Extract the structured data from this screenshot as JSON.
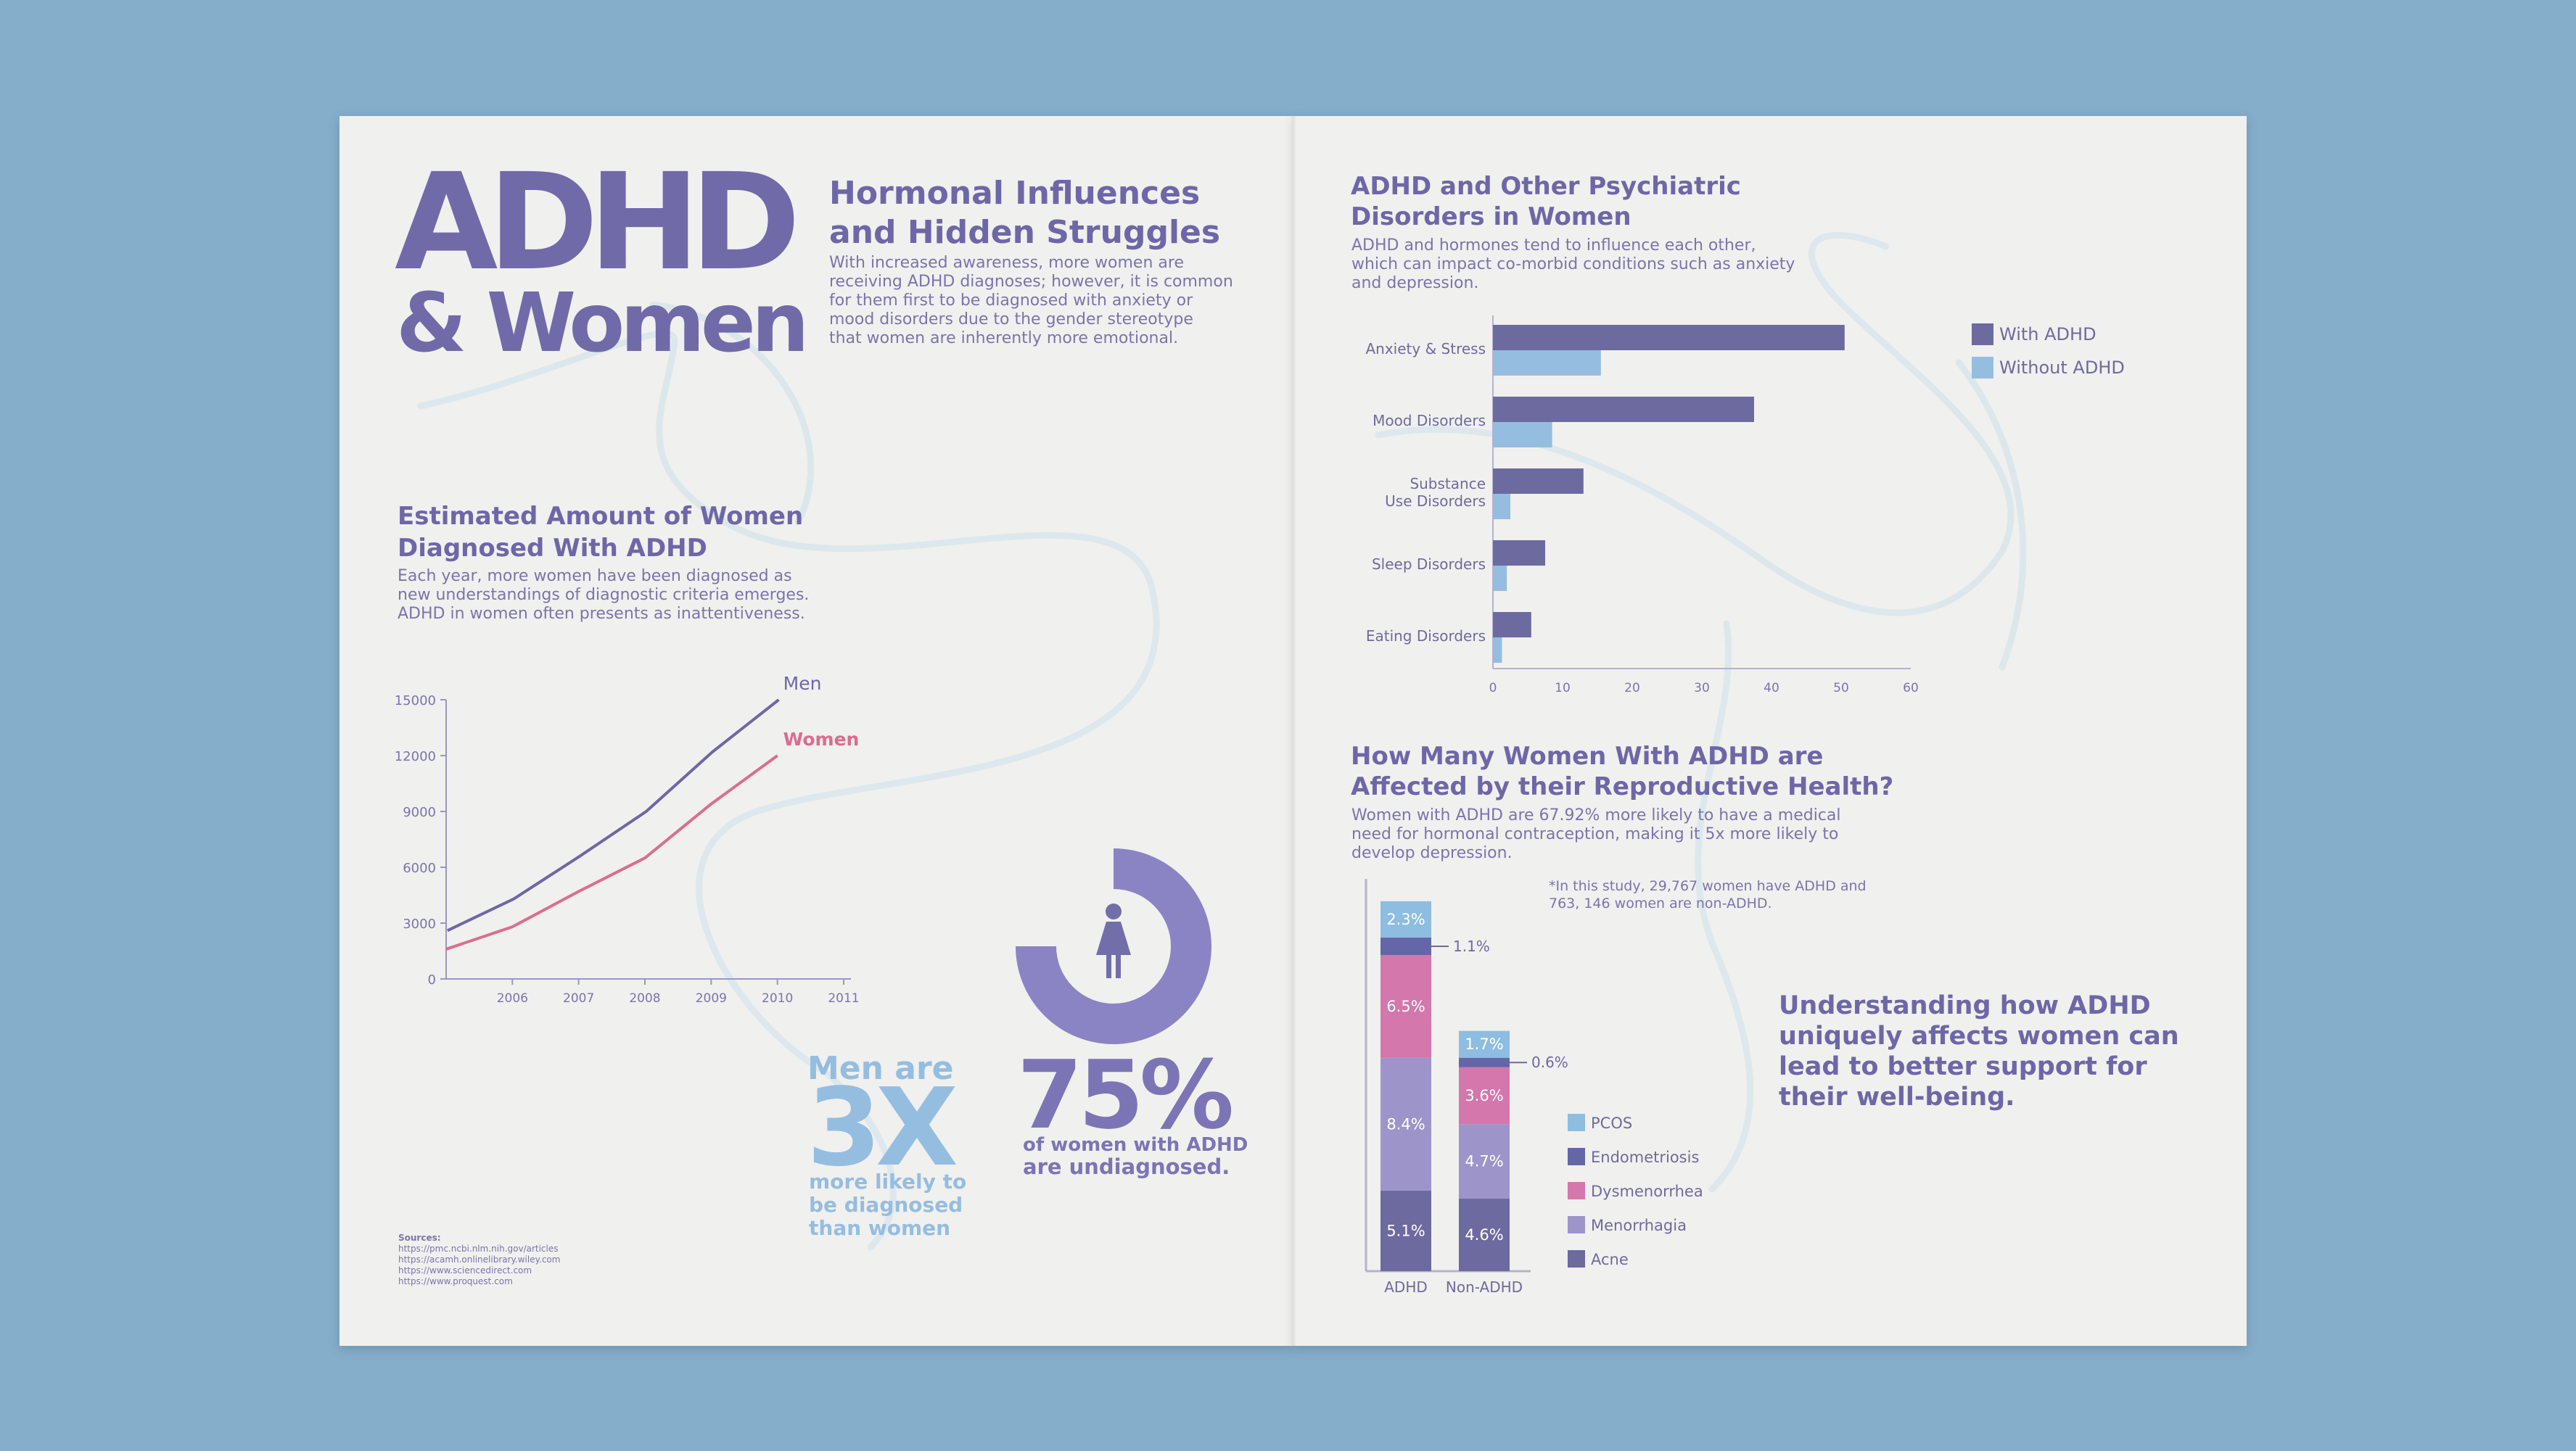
{
  "colors": {
    "background": "#85aecb",
    "paper": "#f0f0ee",
    "purple": "#6d67a8",
    "dark_purple": "#6d6aa0",
    "light_blue": "#95bde0",
    "pink": "#d377ac",
    "lavender": "#9d95c9",
    "sky": "#8dbde0"
  },
  "header": {
    "title_line1": "ADHD",
    "title_line2": "& Women",
    "intro_heading_line1": "Hormonal Influences",
    "intro_heading_line2": "and Hidden Struggles",
    "intro_body": [
      "With increased awareness, more women are",
      "receiving ADHD diagnoses; however, it is common",
      "for them first to be diagnosed with anxiety or",
      "mood disorders due to the gender stereotype",
      "that women are inherently more emotional."
    ]
  },
  "line_section": {
    "heading_line1": "Estimated Amount of Women",
    "heading_line2": "Diagnosed With ADHD",
    "body": [
      "Each year, more women have been diagnosed as",
      "new understandings of diagnostic criteria emerges.",
      "ADHD in women often presents as inattentiveness."
    ]
  },
  "stats": {
    "men_prefix": "Men are",
    "men_big": "3X",
    "men_suffix": [
      "more likely to",
      "be diagnosed",
      "than women"
    ],
    "percent_big": "75%",
    "percent_fraction": 0.75,
    "percent_caption": [
      "of women with ADHD",
      "are undiagnosed."
    ],
    "icon": "woman-figure-icon"
  },
  "sources": {
    "label": "Sources:",
    "links": [
      "https://pmc.ncbi.nlm.nih.gov/articles",
      "https://acamh.onlinelibrary.wiley.com",
      "https://www.sciencedirect.com",
      "https://www.proquest.com"
    ]
  },
  "bar_section": {
    "heading_line1": "ADHD and Other Psychiatric",
    "heading_line2": "Disorders in Women",
    "body": [
      "ADHD and hormones tend to influence each other,",
      "which can impact co-morbid conditions such as anxiety",
      "and depression."
    ]
  },
  "stack_section": {
    "heading_line1": "How Many Women With ADHD are",
    "heading_line2": "Affected by their Reproductive Health?",
    "body": [
      "Women with ADHD are 67.92% more likely to have a medical",
      "need for hormonal contraception, making it 5x more likely to",
      "develop depression."
    ],
    "note": [
      "*In this study, 29,767 women have ADHD and",
      "763, 146 women are non-ADHD."
    ]
  },
  "closing": {
    "text": [
      "Understanding how ADHD",
      "uniquely affects women can",
      "lead to better support for",
      "their well-being."
    ]
  },
  "chart_data": [
    {
      "type": "line",
      "x": [
        2005,
        2006,
        2007,
        2008,
        2009,
        2010,
        2011
      ],
      "xtick_labels": [
        "2006",
        "2007",
        "2008",
        "2009",
        "2010",
        "2011"
      ],
      "ytick_labels": [
        "0",
        "3000",
        "6000",
        "9000",
        "12000",
        "15000"
      ],
      "ylim": [
        0,
        15000
      ],
      "series": [
        {
          "name": "Men",
          "color": "#6d67a8",
          "values": [
            2600,
            4300,
            6600,
            9000,
            12200,
            15000,
            null
          ]
        },
        {
          "name": "Women",
          "color": "#d96d92",
          "values": [
            1600,
            2800,
            4700,
            6500,
            9400,
            12000,
            null
          ]
        }
      ],
      "series_x": [
        2005.0,
        2006.0,
        2007.0,
        2008.0,
        2009.0,
        2010.0
      ],
      "grid": false
    },
    {
      "type": "bar",
      "orientation": "horizontal",
      "categories": [
        "Anxiety & Stress",
        "Mood Disorders",
        "Substance Use Disorders",
        "Sleep Disorders",
        "Eating Disorders"
      ],
      "series": [
        {
          "name": "With ADHD",
          "color": "#6d6aa0",
          "values": [
            50.5,
            37.5,
            13,
            7.5,
            5.5
          ]
        },
        {
          "name": "Without ADHD",
          "color": "#95bde0",
          "values": [
            15.5,
            8.5,
            2.5,
            2,
            1.3
          ]
        }
      ],
      "xlim": [
        0,
        60
      ],
      "xtick_labels": [
        "0",
        "10",
        "20",
        "30",
        "40",
        "50",
        "60"
      ],
      "legend": "top-right",
      "grid": false
    },
    {
      "type": "bar",
      "stacked": true,
      "categories": [
        "ADHD",
        "Non-ADHD"
      ],
      "series": [
        {
          "name": "Acne",
          "color": "#6d6aa0",
          "values": [
            5.1,
            4.6
          ],
          "labels": [
            "5.1%",
            "4.6%"
          ]
        },
        {
          "name": "Menorrhagia",
          "color": "#9d95c9",
          "values": [
            8.4,
            4.7
          ],
          "labels": [
            "8.4%",
            "4.7%"
          ]
        },
        {
          "name": "Dysmenorrhea",
          "color": "#d377ac",
          "values": [
            6.5,
            3.6
          ],
          "labels": [
            "6.5%",
            "3.6%"
          ]
        },
        {
          "name": "Endometriosis",
          "color": "#6566a8",
          "values": [
            1.1,
            0.6
          ],
          "labels": [
            "1.1%",
            "0.6%"
          ]
        },
        {
          "name": "PCOS",
          "color": "#8dbde0",
          "values": [
            2.3,
            1.7
          ],
          "labels": [
            "2.3%",
            "1.7%"
          ]
        }
      ],
      "legend": "right",
      "grid": false
    }
  ]
}
